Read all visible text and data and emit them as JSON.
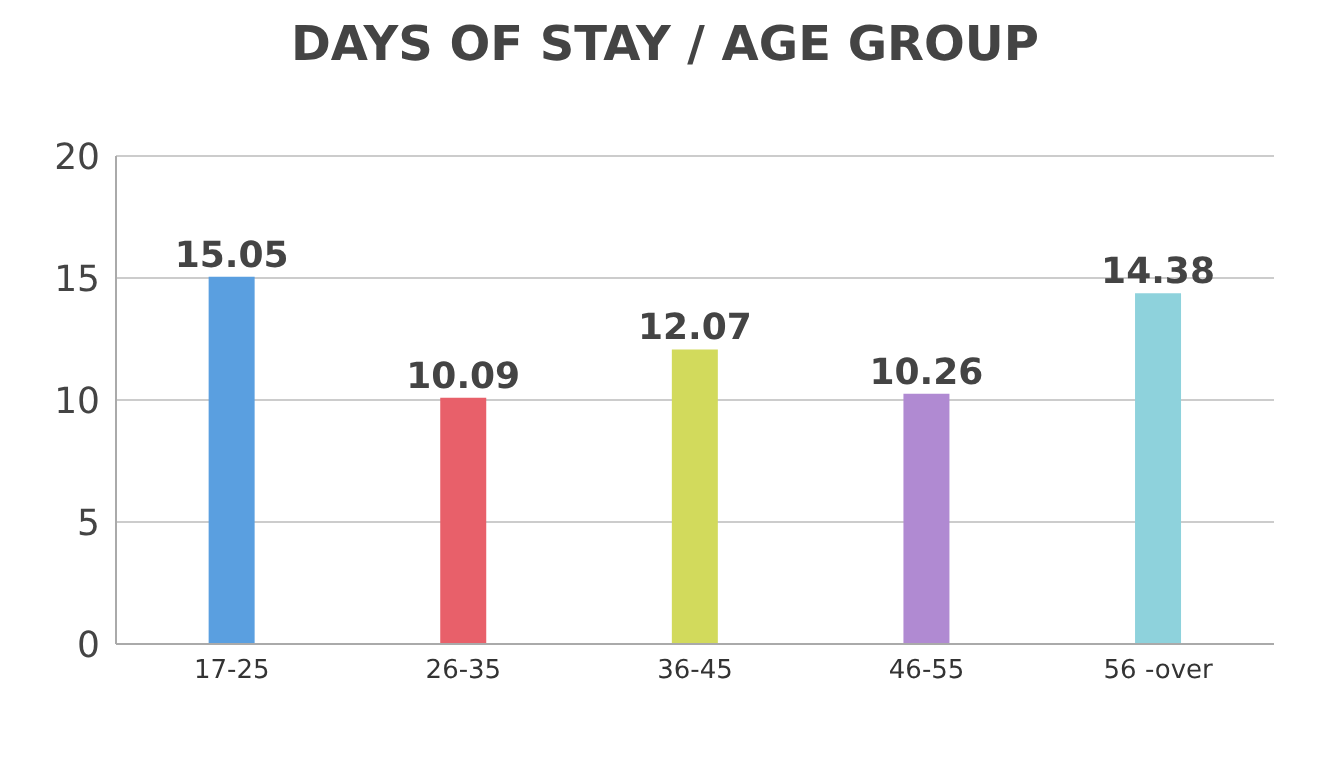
{
  "chart_data": {
    "type": "bar",
    "title": "DAYS OF STAY / AGE GROUP",
    "categories": [
      "17-25",
      "26-35",
      "36-45",
      "46-55",
      "56 -over"
    ],
    "values": [
      15.05,
      10.09,
      12.07,
      10.26,
      14.38
    ],
    "colors": [
      "#5a9fe0",
      "#e8606a",
      "#d2da5c",
      "#b08ad2",
      "#8ed2dc"
    ],
    "ylim": [
      0,
      20
    ],
    "yticks": [
      0,
      5,
      10,
      15,
      20
    ],
    "grid": "y",
    "data_labels": true
  }
}
